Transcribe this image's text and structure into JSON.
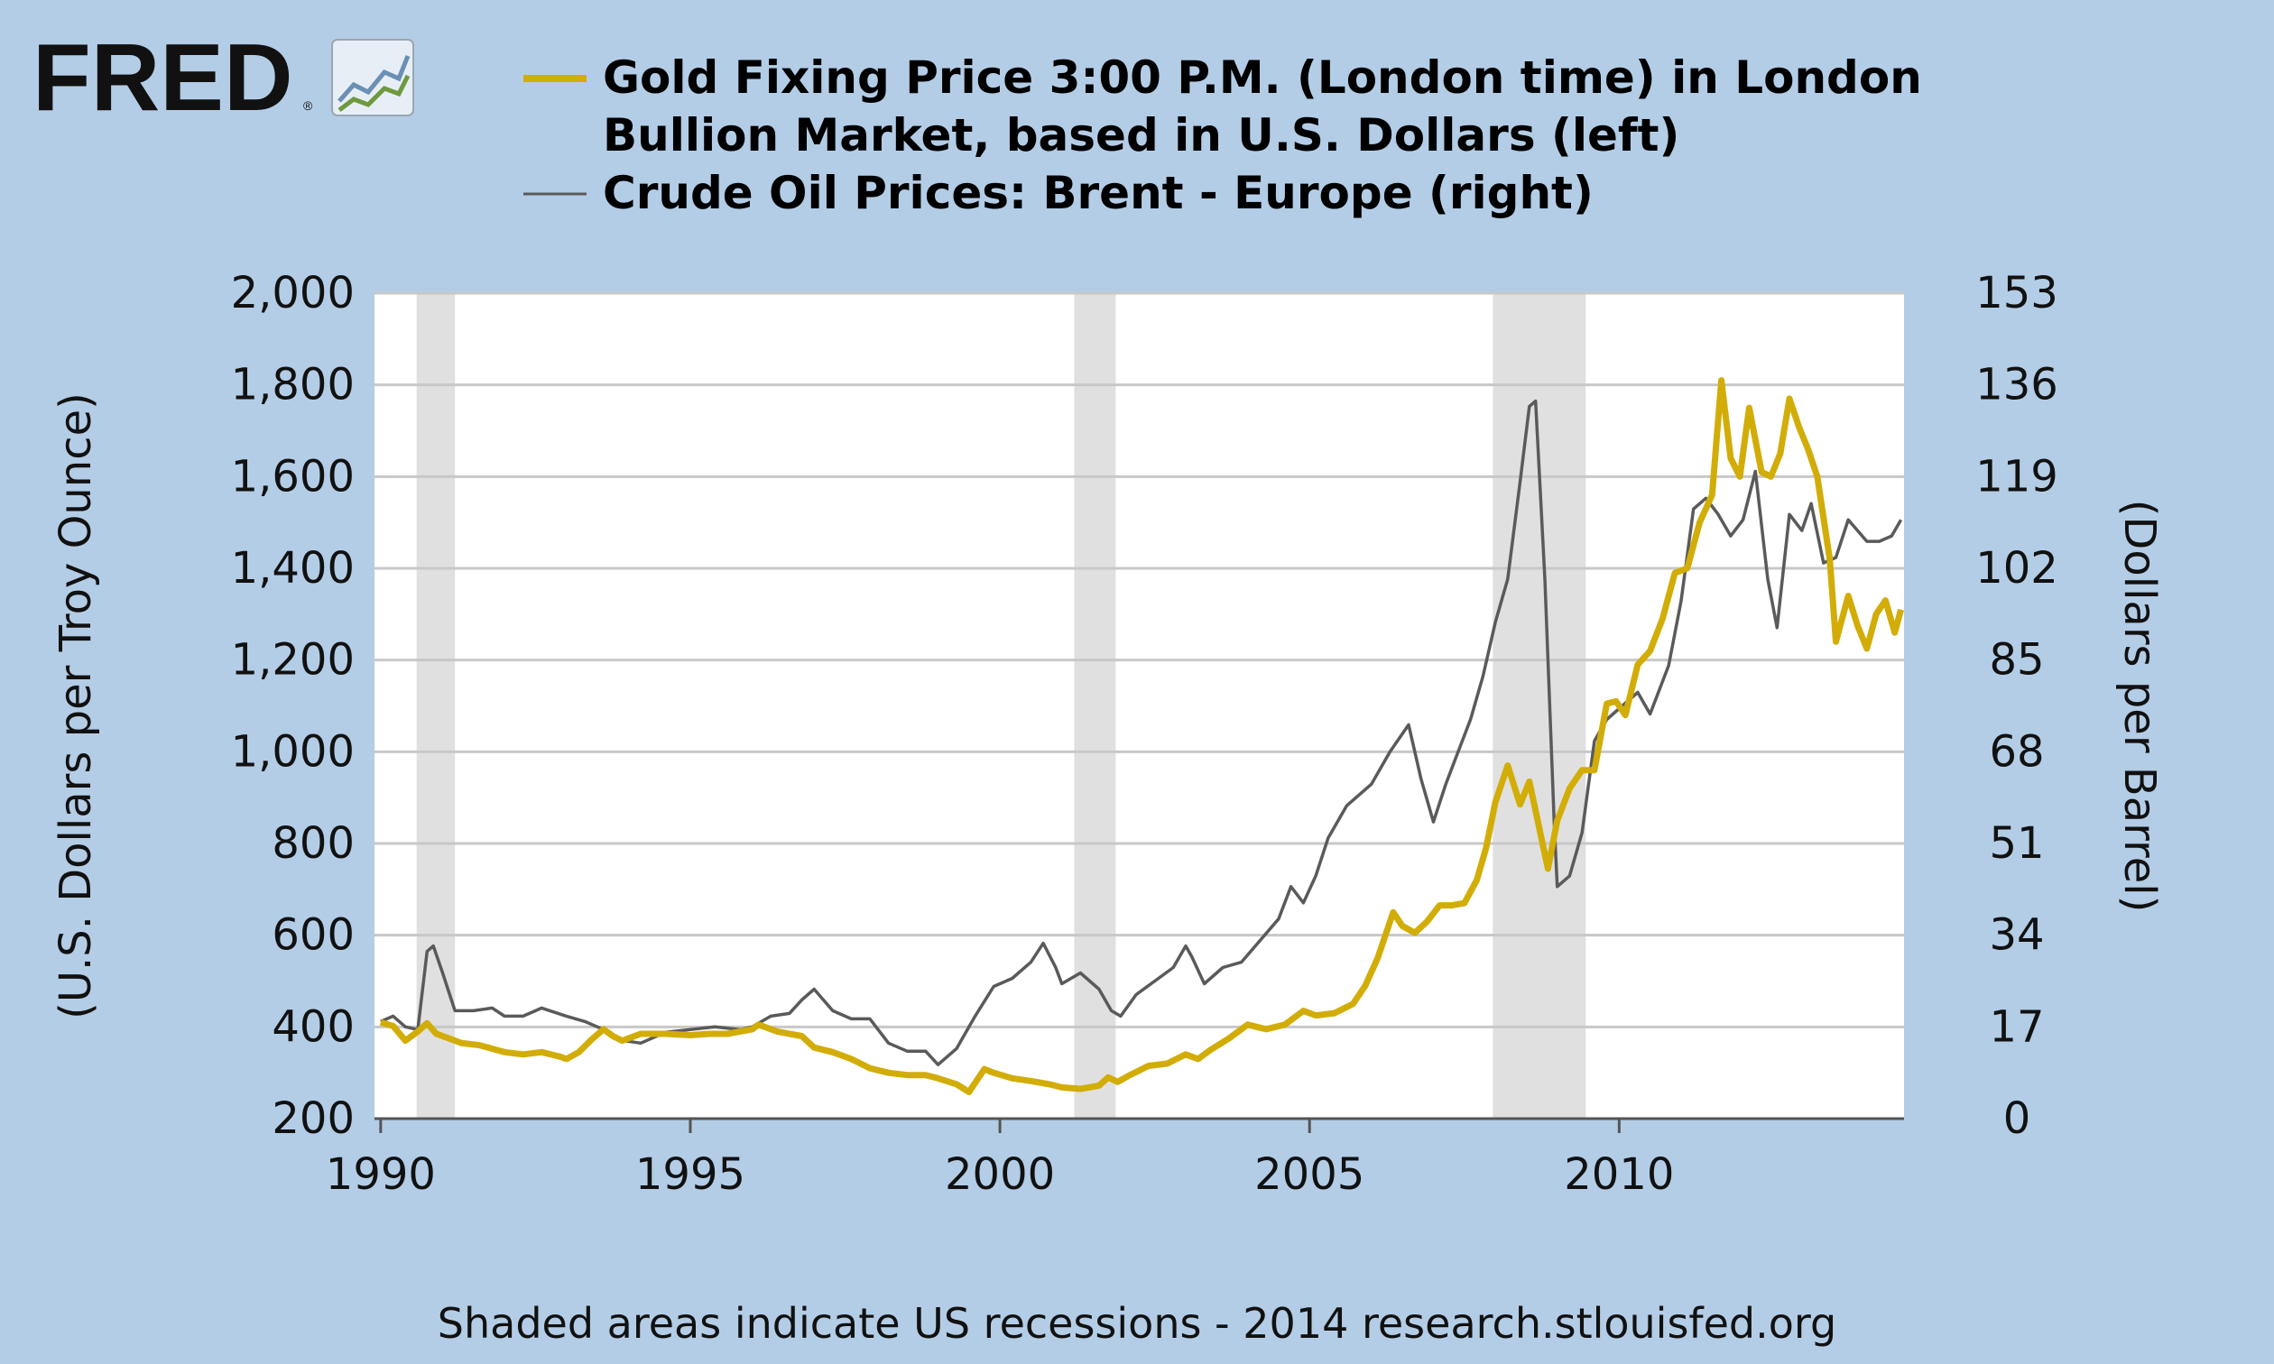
{
  "brand": {
    "name": "FRED",
    "registered_mark": "®"
  },
  "footer": {
    "note": "Shaded areas indicate US recessions - 2014 research.stlouisfed.org"
  },
  "colors": {
    "background": "#b4cde6",
    "gold_series": "#d2ad07",
    "oil_series": "#5a5a5a",
    "recession_shade": "#e0e0e0",
    "grid": "#c8c8c8",
    "plot_background": "#ffffff"
  },
  "chart_data": {
    "type": "line",
    "x_range": [
      1989.9,
      2014.6
    ],
    "x_ticks": [
      1990,
      1995,
      2000,
      2005,
      2010
    ],
    "x_tick_labels": [
      "1990",
      "1995",
      "2000",
      "2005",
      "2010"
    ],
    "left_axis": {
      "label": "(U.S. Dollars per Troy Ounce)",
      "range": [
        200,
        2000
      ],
      "ticks": [
        200,
        400,
        600,
        800,
        1000,
        1200,
        1400,
        1600,
        1800,
        2000
      ],
      "tick_labels": [
        "200",
        "400",
        "600",
        "800",
        "1,000",
        "1,200",
        "1,400",
        "1,600",
        "1,800",
        "2,000"
      ]
    },
    "right_axis": {
      "label": "(Dollars per Barrel)",
      "range": [
        0,
        153
      ],
      "ticks": [
        0,
        17,
        34,
        51,
        68,
        85,
        102,
        119,
        136,
        153
      ],
      "tick_labels": [
        "0",
        "17",
        "34",
        "51",
        "68",
        "85",
        "102",
        "119",
        "136",
        "153"
      ]
    },
    "recessions": [
      [
        1990.58,
        1991.2
      ],
      [
        2001.2,
        2001.87
      ],
      [
        2007.96,
        2009.46
      ]
    ],
    "grid": true,
    "series": [
      {
        "name": "Gold Fixing Price 3:00 P.M. (London time) in London Bullion Market, based in U.S. Dollars (left)",
        "axis": "left",
        "color": "#d2ad07",
        "points": [
          [
            1990.0,
            410
          ],
          [
            1990.2,
            402
          ],
          [
            1990.4,
            370
          ],
          [
            1990.6,
            390
          ],
          [
            1990.75,
            408
          ],
          [
            1990.9,
            385
          ],
          [
            1991.0,
            380
          ],
          [
            1991.3,
            365
          ],
          [
            1991.6,
            360
          ],
          [
            1992.0,
            345
          ],
          [
            1992.3,
            340
          ],
          [
            1992.6,
            345
          ],
          [
            1992.9,
            335
          ],
          [
            1993.0,
            330
          ],
          [
            1993.2,
            345
          ],
          [
            1993.4,
            372
          ],
          [
            1993.6,
            395
          ],
          [
            1993.75,
            380
          ],
          [
            1993.9,
            370
          ],
          [
            1994.2,
            385
          ],
          [
            1994.6,
            385
          ],
          [
            1995.0,
            382
          ],
          [
            1995.3,
            385
          ],
          [
            1995.6,
            385
          ],
          [
            1996.0,
            395
          ],
          [
            1996.1,
            405
          ],
          [
            1996.4,
            390
          ],
          [
            1996.8,
            380
          ],
          [
            1997.0,
            355
          ],
          [
            1997.3,
            345
          ],
          [
            1997.6,
            330
          ],
          [
            1997.9,
            310
          ],
          [
            1998.2,
            300
          ],
          [
            1998.5,
            295
          ],
          [
            1998.8,
            295
          ],
          [
            1999.0,
            288
          ],
          [
            1999.3,
            275
          ],
          [
            1999.5,
            258
          ],
          [
            1999.75,
            308
          ],
          [
            1999.9,
            300
          ],
          [
            2000.2,
            288
          ],
          [
            2000.5,
            282
          ],
          [
            2000.8,
            275
          ],
          [
            2001.0,
            268
          ],
          [
            2001.3,
            265
          ],
          [
            2001.6,
            272
          ],
          [
            2001.75,
            290
          ],
          [
            2001.9,
            280
          ],
          [
            2002.1,
            295
          ],
          [
            2002.4,
            315
          ],
          [
            2002.7,
            320
          ],
          [
            2003.0,
            340
          ],
          [
            2003.2,
            330
          ],
          [
            2003.4,
            350
          ],
          [
            2003.7,
            375
          ],
          [
            2004.0,
            405
          ],
          [
            2004.3,
            395
          ],
          [
            2004.6,
            405
          ],
          [
            2004.9,
            435
          ],
          [
            2005.1,
            425
          ],
          [
            2005.4,
            430
          ],
          [
            2005.7,
            450
          ],
          [
            2005.9,
            490
          ],
          [
            2006.1,
            550
          ],
          [
            2006.35,
            650
          ],
          [
            2006.5,
            620
          ],
          [
            2006.7,
            605
          ],
          [
            2006.9,
            630
          ],
          [
            2007.1,
            665
          ],
          [
            2007.3,
            665
          ],
          [
            2007.5,
            670
          ],
          [
            2007.7,
            720
          ],
          [
            2007.85,
            790
          ],
          [
            2008.0,
            890
          ],
          [
            2008.2,
            970
          ],
          [
            2008.4,
            885
          ],
          [
            2008.55,
            935
          ],
          [
            2008.7,
            840
          ],
          [
            2008.85,
            745
          ],
          [
            2009.0,
            850
          ],
          [
            2009.2,
            920
          ],
          [
            2009.4,
            960
          ],
          [
            2009.6,
            960
          ],
          [
            2009.8,
            1105
          ],
          [
            2009.95,
            1110
          ],
          [
            2010.1,
            1080
          ],
          [
            2010.3,
            1190
          ],
          [
            2010.5,
            1220
          ],
          [
            2010.7,
            1290
          ],
          [
            2010.9,
            1390
          ],
          [
            2011.1,
            1400
          ],
          [
            2011.3,
            1500
          ],
          [
            2011.5,
            1560
          ],
          [
            2011.65,
            1810
          ],
          [
            2011.8,
            1640
          ],
          [
            2011.95,
            1600
          ],
          [
            2012.1,
            1750
          ],
          [
            2012.3,
            1610
          ],
          [
            2012.45,
            1600
          ],
          [
            2012.6,
            1650
          ],
          [
            2012.75,
            1770
          ],
          [
            2012.9,
            1710
          ],
          [
            2013.05,
            1660
          ],
          [
            2013.2,
            1600
          ],
          [
            2013.4,
            1420
          ],
          [
            2013.5,
            1240
          ],
          [
            2013.7,
            1340
          ],
          [
            2013.85,
            1275
          ],
          [
            2014.0,
            1225
          ],
          [
            2014.15,
            1300
          ],
          [
            2014.3,
            1330
          ],
          [
            2014.45,
            1260
          ],
          [
            2014.55,
            1310
          ]
        ]
      },
      {
        "name": "Crude Oil Prices: Brent - Europe (right)",
        "axis": "right",
        "color": "#5a5a5a",
        "points": [
          [
            1990.0,
            18
          ],
          [
            1990.2,
            19
          ],
          [
            1990.4,
            17
          ],
          [
            1990.6,
            16.5
          ],
          [
            1990.75,
            31
          ],
          [
            1990.85,
            32
          ],
          [
            1991.0,
            27
          ],
          [
            1991.2,
            20
          ],
          [
            1991.5,
            20
          ],
          [
            1991.8,
            20.5
          ],
          [
            1992.0,
            19
          ],
          [
            1992.3,
            19
          ],
          [
            1992.6,
            20.5
          ],
          [
            1993.0,
            19
          ],
          [
            1993.3,
            18
          ],
          [
            1993.6,
            16.5
          ],
          [
            1993.9,
            14.5
          ],
          [
            1994.2,
            14
          ],
          [
            1994.6,
            16
          ],
          [
            1995.0,
            16.5
          ],
          [
            1995.4,
            17
          ],
          [
            1995.8,
            16.5
          ],
          [
            1996.0,
            17
          ],
          [
            1996.3,
            19
          ],
          [
            1996.6,
            19.5
          ],
          [
            1996.8,
            22
          ],
          [
            1997.0,
            24
          ],
          [
            1997.3,
            20
          ],
          [
            1997.6,
            18.5
          ],
          [
            1997.9,
            18.5
          ],
          [
            1998.2,
            14
          ],
          [
            1998.5,
            12.5
          ],
          [
            1998.8,
            12.5
          ],
          [
            1999.0,
            10
          ],
          [
            1999.3,
            13
          ],
          [
            1999.6,
            19
          ],
          [
            1999.9,
            24.5
          ],
          [
            2000.2,
            26
          ],
          [
            2000.5,
            29
          ],
          [
            2000.7,
            32.5
          ],
          [
            2000.9,
            28
          ],
          [
            2001.0,
            25
          ],
          [
            2001.3,
            27
          ],
          [
            2001.6,
            24
          ],
          [
            2001.8,
            20
          ],
          [
            2001.95,
            19
          ],
          [
            2002.2,
            23
          ],
          [
            2002.5,
            25.5
          ],
          [
            2002.8,
            28
          ],
          [
            2003.0,
            32
          ],
          [
            2003.1,
            30
          ],
          [
            2003.3,
            25
          ],
          [
            2003.6,
            28
          ],
          [
            2003.9,
            29
          ],
          [
            2004.2,
            33
          ],
          [
            2004.5,
            37
          ],
          [
            2004.7,
            43
          ],
          [
            2004.9,
            40
          ],
          [
            2005.1,
            45
          ],
          [
            2005.3,
            52
          ],
          [
            2005.6,
            58
          ],
          [
            2005.8,
            60
          ],
          [
            2006.0,
            62
          ],
          [
            2006.3,
            68
          ],
          [
            2006.6,
            73
          ],
          [
            2006.8,
            63
          ],
          [
            2007.0,
            55
          ],
          [
            2007.2,
            62
          ],
          [
            2007.4,
            68
          ],
          [
            2007.6,
            74
          ],
          [
            2007.8,
            82
          ],
          [
            2008.0,
            92
          ],
          [
            2008.2,
            100
          ],
          [
            2008.4,
            118
          ],
          [
            2008.55,
            132
          ],
          [
            2008.65,
            133
          ],
          [
            2008.8,
            100
          ],
          [
            2008.95,
            55
          ],
          [
            2009.0,
            43
          ],
          [
            2009.2,
            45
          ],
          [
            2009.4,
            53
          ],
          [
            2009.6,
            70
          ],
          [
            2009.8,
            74
          ],
          [
            2010.0,
            76
          ],
          [
            2010.3,
            79
          ],
          [
            2010.5,
            75
          ],
          [
            2010.8,
            84
          ],
          [
            2011.0,
            96
          ],
          [
            2011.2,
            113
          ],
          [
            2011.4,
            115
          ],
          [
            2011.6,
            112
          ],
          [
            2011.8,
            108
          ],
          [
            2012.0,
            111
          ],
          [
            2012.2,
            120
          ],
          [
            2012.4,
            100
          ],
          [
            2012.55,
            91
          ],
          [
            2012.75,
            112
          ],
          [
            2012.95,
            109
          ],
          [
            2013.1,
            114
          ],
          [
            2013.3,
            103
          ],
          [
            2013.5,
            104
          ],
          [
            2013.7,
            111
          ],
          [
            2013.85,
            109
          ],
          [
            2014.0,
            107
          ],
          [
            2014.2,
            107
          ],
          [
            2014.4,
            108
          ],
          [
            2014.55,
            111
          ]
        ]
      }
    ]
  }
}
